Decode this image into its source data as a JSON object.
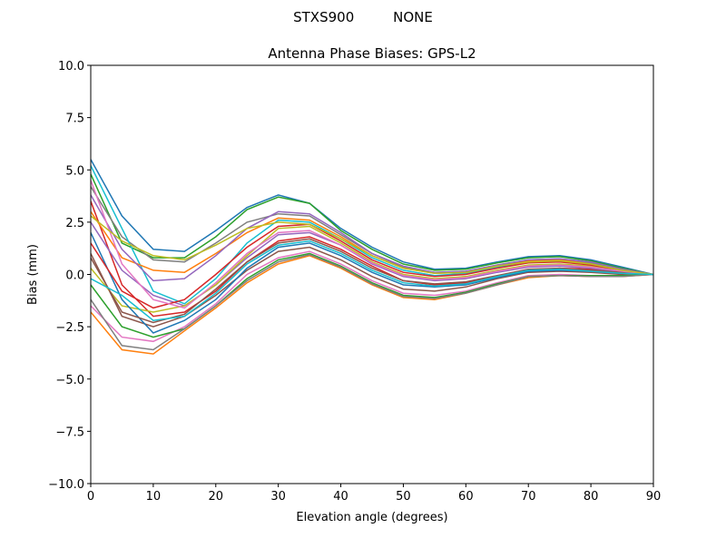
{
  "suptitle": "STXS900         NONE",
  "chart_data": {
    "type": "line",
    "title": "Antenna Phase Biases: GPS-L2",
    "xlabel": "Elevation angle (degrees)",
    "ylabel": "Bias (mm)",
    "xlim": [
      0,
      90
    ],
    "ylim": [
      -10,
      10
    ],
    "xticks": [
      0,
      10,
      20,
      30,
      40,
      50,
      60,
      70,
      80,
      90
    ],
    "yticks": [
      -10.0,
      -7.5,
      -5.0,
      -2.5,
      0.0,
      2.5,
      5.0,
      7.5,
      10.0
    ],
    "ytick_labels": [
      "−10.0",
      "−7.5",
      "−5.0",
      "−2.5",
      "0.0",
      "2.5",
      "5.0",
      "7.5",
      "10.0"
    ],
    "xtick_labels": [
      "0",
      "10",
      "20",
      "30",
      "40",
      "50",
      "60",
      "70",
      "80",
      "90"
    ],
    "grid": false,
    "legend": "none",
    "colors": [
      "#1f77b4",
      "#ff7f0e",
      "#2ca02c",
      "#d62728",
      "#9467bd",
      "#8c564b",
      "#e377c2",
      "#7f7f7f",
      "#bcbd22",
      "#17becf"
    ],
    "x": [
      0,
      5,
      10,
      15,
      20,
      25,
      30,
      35,
      40,
      45,
      50,
      55,
      60,
      65,
      70,
      75,
      80,
      85,
      90
    ],
    "series": [
      {
        "values": [
          5.5,
          2.8,
          1.2,
          1.1,
          2.1,
          3.2,
          3.8,
          3.4,
          2.2,
          1.3,
          0.6,
          0.25,
          0.3,
          0.6,
          0.85,
          0.9,
          0.7,
          0.35,
          0
        ]
      },
      {
        "values": [
          -1.8,
          -3.6,
          -3.8,
          -2.7,
          -1.6,
          -0.4,
          0.5,
          0.9,
          0.3,
          -0.5,
          -1.1,
          -1.2,
          -0.9,
          -0.5,
          -0.15,
          -0.05,
          -0.1,
          -0.1,
          0
        ]
      },
      {
        "values": [
          4.8,
          1.5,
          0.8,
          0.8,
          1.8,
          3.1,
          3.7,
          3.4,
          2.1,
          1.2,
          0.5,
          0.2,
          0.25,
          0.55,
          0.8,
          0.85,
          0.65,
          0.3,
          0
        ]
      },
      {
        "values": [
          3.5,
          -0.5,
          -2.0,
          -1.8,
          -0.8,
          0.6,
          1.6,
          1.8,
          1.2,
          0.4,
          -0.3,
          -0.5,
          -0.4,
          -0.1,
          0.2,
          0.3,
          0.25,
          0.1,
          0
        ]
      },
      {
        "values": [
          2.5,
          0.2,
          -1.0,
          -1.5,
          -0.5,
          0.8,
          1.9,
          2.0,
          1.4,
          0.5,
          -0.1,
          -0.3,
          -0.2,
          0.1,
          0.35,
          0.4,
          0.3,
          0.1,
          0
        ]
      },
      {
        "values": [
          1.0,
          -2.0,
          -2.5,
          -2.0,
          -1.0,
          0.2,
          1.1,
          1.3,
          0.7,
          -0.1,
          -0.7,
          -0.8,
          -0.6,
          -0.2,
          0.1,
          0.15,
          0.1,
          0,
          0
        ]
      },
      {
        "values": [
          -1.5,
          -3.0,
          -3.2,
          -2.5,
          -1.4,
          0,
          0.8,
          1.1,
          0.5,
          -0.3,
          -0.9,
          -1.0,
          -0.8,
          -0.4,
          -0.05,
          0,
          -0.05,
          -0.05,
          0
        ]
      },
      {
        "values": [
          4.2,
          1.8,
          0.7,
          0.6,
          1.5,
          2.5,
          2.9,
          2.8,
          1.9,
          1.0,
          0.35,
          0.1,
          0.15,
          0.45,
          0.7,
          0.75,
          0.55,
          0.25,
          0
        ]
      },
      {
        "values": [
          0.3,
          -1.5,
          -1.8,
          -1.5,
          -0.5,
          0.9,
          2.2,
          2.3,
          1.5,
          0.6,
          0,
          -0.2,
          -0.1,
          0.2,
          0.45,
          0.5,
          0.4,
          0.15,
          0
        ]
      },
      {
        "values": [
          5.2,
          2.2,
          -0.8,
          -1.4,
          -0.2,
          1.5,
          2.6,
          2.5,
          1.7,
          0.8,
          0.2,
          -0.05,
          0.05,
          0.35,
          0.6,
          0.65,
          0.5,
          0.2,
          0
        ]
      },
      {
        "values": [
          2.0,
          -1.2,
          -2.8,
          -2.2,
          -1.2,
          0.3,
          1.3,
          1.5,
          0.9,
          0.1,
          -0.5,
          -0.6,
          -0.5,
          -0.15,
          0.15,
          0.2,
          0.15,
          0.05,
          0
        ]
      },
      {
        "values": [
          3.0,
          0.8,
          0.2,
          0.1,
          1.0,
          2.0,
          2.7,
          2.6,
          1.8,
          0.9,
          0.3,
          0.05,
          0.1,
          0.4,
          0.65,
          0.7,
          0.5,
          0.2,
          0
        ]
      },
      {
        "values": [
          -0.5,
          -2.5,
          -3.0,
          -2.6,
          -1.5,
          -0.2,
          0.7,
          1.0,
          0.4,
          -0.4,
          -1.0,
          -1.1,
          -0.85,
          -0.45,
          -0.1,
          -0.05,
          -0.05,
          -0.05,
          0
        ]
      },
      {
        "values": [
          1.5,
          -0.8,
          -1.6,
          -1.2,
          0,
          1.3,
          2.3,
          2.4,
          1.6,
          0.7,
          0.1,
          -0.1,
          0,
          0.3,
          0.55,
          0.6,
          0.45,
          0.2,
          0
        ]
      },
      {
        "values": [
          3.8,
          1.2,
          -0.3,
          -0.2,
          0.9,
          2.2,
          3.0,
          2.9,
          2.0,
          1.0,
          0.4,
          0.1,
          0.15,
          0.45,
          0.7,
          0.75,
          0.6,
          0.25,
          0
        ]
      },
      {
        "values": [
          0.8,
          -1.8,
          -2.3,
          -1.9,
          -0.7,
          0.6,
          1.5,
          1.7,
          1.1,
          0.3,
          -0.3,
          -0.45,
          -0.35,
          -0.05,
          0.25,
          0.3,
          0.2,
          0.1,
          0
        ]
      },
      {
        "values": [
          4.5,
          0.5,
          -1.2,
          -1.6,
          -0.4,
          1.0,
          2.0,
          2.1,
          1.4,
          0.55,
          -0.05,
          -0.25,
          -0.15,
          0.15,
          0.4,
          0.45,
          0.35,
          0.15,
          0
        ]
      },
      {
        "values": [
          -1.2,
          -3.4,
          -3.6,
          -2.6,
          -1.5,
          -0.3,
          0.6,
          0.95,
          0.35,
          -0.45,
          -1.05,
          -1.15,
          -0.9,
          -0.5,
          -0.1,
          -0.05,
          -0.1,
          -0.1,
          0
        ]
      },
      {
        "values": [
          2.8,
          1.6,
          0.9,
          0.7,
          1.4,
          2.2,
          2.5,
          2.4,
          1.7,
          0.9,
          0.3,
          0.05,
          0.1,
          0.4,
          0.6,
          0.65,
          0.5,
          0.2,
          0
        ]
      },
      {
        "values": [
          -0.2,
          -1.0,
          -2.2,
          -2.0,
          -0.9,
          0.5,
          1.4,
          1.6,
          1.0,
          0.2,
          -0.4,
          -0.55,
          -0.45,
          -0.1,
          0.2,
          0.25,
          0.15,
          0.05,
          0
        ]
      }
    ]
  }
}
